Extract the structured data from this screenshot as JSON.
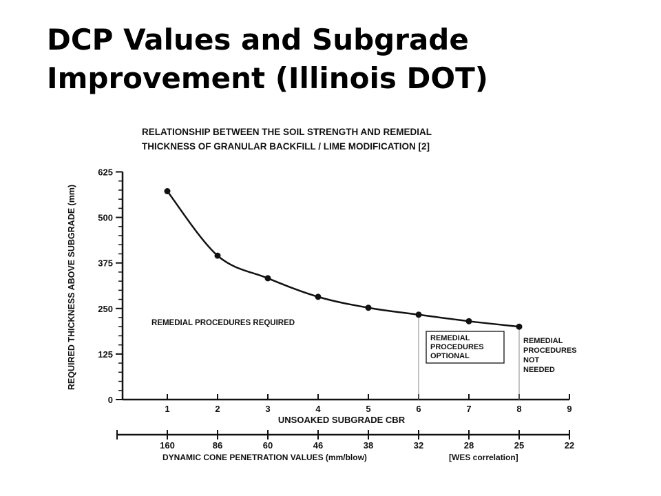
{
  "slide": {
    "title_line1": "DCP Values and Subgrade",
    "title_line2": "Improvement (Illinois DOT)"
  },
  "chart_data": {
    "type": "line",
    "title_line1": "RELATIONSHIP BETWEEN THE SOIL STRENGTH AND REMEDIAL",
    "title_line2": "THICKNESS OF GRANULAR BACKFILL / LIME MODIFICATION [2]",
    "ylabel": "REQUIRED THICKNESS ABOVE SUBGRADE  (mm)",
    "xlabel": "UNSOAKED SUBGRADE CBR",
    "x2label": "DYNAMIC CONE PENETRATION VALUES  (mm/blow)",
    "x2note": "[WES correlation]",
    "ylim": [
      0,
      625
    ],
    "yticks": [
      "0",
      "125",
      "250",
      "375",
      "500",
      "625"
    ],
    "xlim": [
      0,
      9
    ],
    "xticks": [
      "1",
      "2",
      "3",
      "4",
      "5",
      "6",
      "7",
      "8",
      "9"
    ],
    "x2ticks": [
      "160",
      "86",
      "60",
      "46",
      "38",
      "32",
      "28",
      "25",
      "22"
    ],
    "series": [
      {
        "x": [
          1,
          2,
          3,
          4,
          5,
          6,
          7,
          8
        ],
        "y": [
          572,
          395,
          333,
          282,
          252,
          233,
          215,
          200
        ]
      }
    ],
    "regions": {
      "required": "REMEDIAL PROCEDURES REQUIRED",
      "optional": [
        "REMEDIAL",
        "PROCEDURES",
        "OPTIONAL"
      ],
      "not_needed": [
        "REMEDIAL",
        "PROCEDURES",
        "NOT",
        "NEEDED"
      ]
    }
  }
}
